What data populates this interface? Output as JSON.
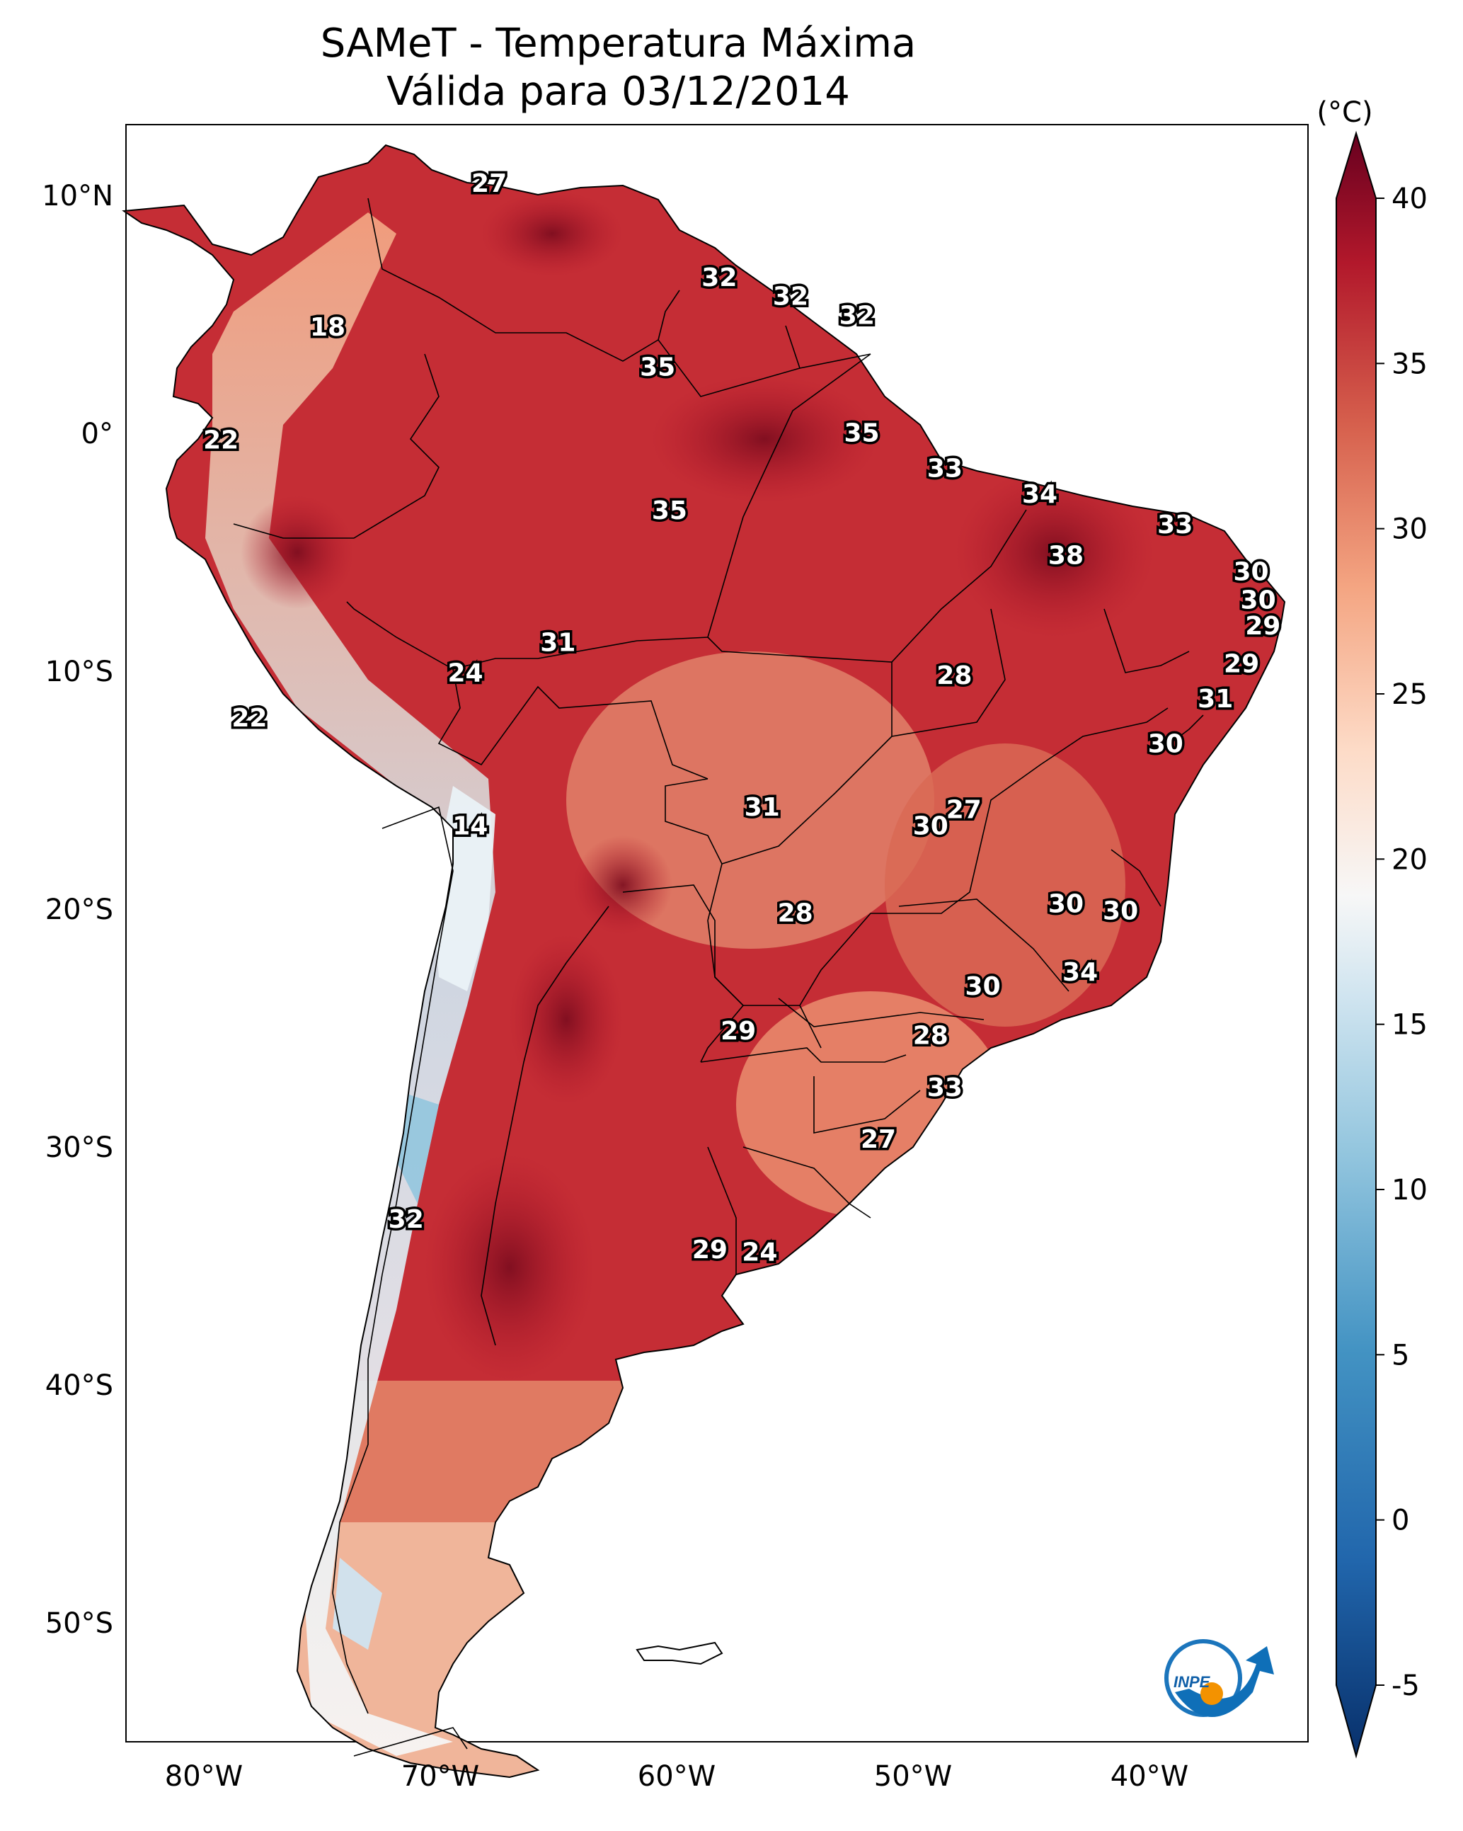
{
  "title": {
    "line1": "SAMeT - Temperatura Máxima",
    "line2": "Válida para 03/12/2014"
  },
  "colorbar": {
    "unit": "(°C)",
    "ticks": [
      "40",
      "35",
      "30",
      "25",
      "20",
      "15",
      "10",
      "5",
      "0",
      "-5"
    ],
    "range": [
      -5,
      40
    ]
  },
  "axes": {
    "lat_labels": [
      "10°N",
      "0°",
      "10°S",
      "20°S",
      "30°S",
      "40°S",
      "50°S"
    ],
    "lon_labels": [
      "80°W",
      "70°W",
      "60°W",
      "50°W",
      "40°W"
    ]
  },
  "logo": {
    "text": "INPE"
  },
  "contour_labels": [
    {
      "v": "27",
      "lon": -67.5,
      "lat": 10.6
    },
    {
      "v": "18",
      "lon": -74.3,
      "lat": 4.5
    },
    {
      "v": "32",
      "lon": -57.8,
      "lat": 6.6
    },
    {
      "v": "32",
      "lon": -54.8,
      "lat": 5.8
    },
    {
      "v": "32",
      "lon": -52.0,
      "lat": 5.0
    },
    {
      "v": "35",
      "lon": -60.4,
      "lat": 2.8
    },
    {
      "v": "22",
      "lon": -78.8,
      "lat": -0.3
    },
    {
      "v": "35",
      "lon": -51.8,
      "lat": 0.0
    },
    {
      "v": "33",
      "lon": -48.3,
      "lat": -1.5
    },
    {
      "v": "35",
      "lon": -59.9,
      "lat": -3.3
    },
    {
      "v": "34",
      "lon": -44.3,
      "lat": -2.6
    },
    {
      "v": "33",
      "lon": -38.6,
      "lat": -3.9
    },
    {
      "v": "38",
      "lon": -43.2,
      "lat": -5.2
    },
    {
      "v": "30",
      "lon": -35.4,
      "lat": -5.9
    },
    {
      "v": "30",
      "lon": -35.1,
      "lat": -7.1
    },
    {
      "v": "29",
      "lon": -34.9,
      "lat": -8.2
    },
    {
      "v": "31",
      "lon": -64.6,
      "lat": -8.9
    },
    {
      "v": "24",
      "lon": -68.5,
      "lat": -10.2
    },
    {
      "v": "28",
      "lon": -47.9,
      "lat": -10.3
    },
    {
      "v": "29",
      "lon": -35.8,
      "lat": -9.8
    },
    {
      "v": "31",
      "lon": -36.9,
      "lat": -11.3
    },
    {
      "v": "22",
      "lon": -77.6,
      "lat": -12.1
    },
    {
      "v": "30",
      "lon": -39.0,
      "lat": -13.2
    },
    {
      "v": "31",
      "lon": -56.0,
      "lat": -15.9
    },
    {
      "v": "27",
      "lon": -47.5,
      "lat": -16.0
    },
    {
      "v": "30",
      "lon": -48.9,
      "lat": -16.7
    },
    {
      "v": "14",
      "lon": -68.3,
      "lat": -16.7
    },
    {
      "v": "30",
      "lon": -43.2,
      "lat": -20.0
    },
    {
      "v": "30",
      "lon": -40.9,
      "lat": -20.3
    },
    {
      "v": "28",
      "lon": -54.6,
      "lat": -20.4
    },
    {
      "v": "34",
      "lon": -42.6,
      "lat": -22.9
    },
    {
      "v": "30",
      "lon": -46.7,
      "lat": -23.5
    },
    {
      "v": "28",
      "lon": -48.9,
      "lat": -25.6
    },
    {
      "v": "29",
      "lon": -57.0,
      "lat": -25.4
    },
    {
      "v": "33",
      "lon": -48.3,
      "lat": -27.8
    },
    {
      "v": "27",
      "lon": -51.1,
      "lat": -30.0
    },
    {
      "v": "32",
      "lon": -71.0,
      "lat": -33.4
    },
    {
      "v": "29",
      "lon": -58.2,
      "lat": -34.7
    },
    {
      "v": "24",
      "lon": -56.1,
      "lat": -34.8
    }
  ]
}
